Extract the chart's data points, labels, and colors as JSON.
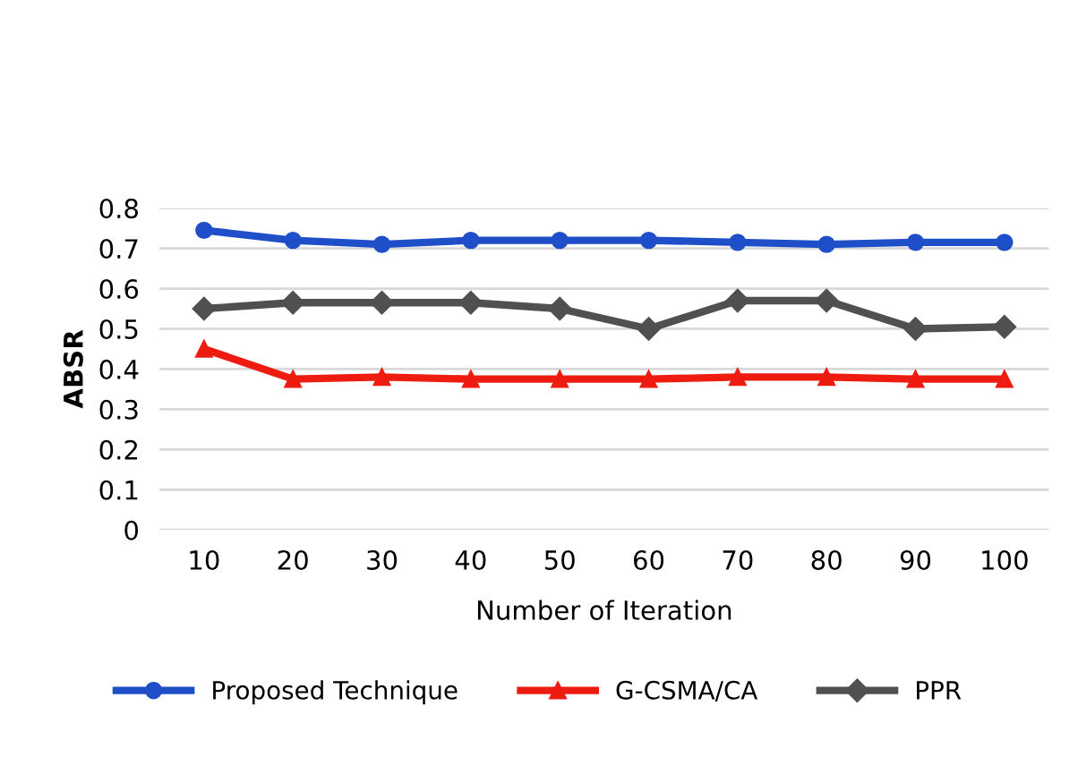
{
  "chart_data": {
    "type": "line",
    "xlabel": "Number of Iteration",
    "ylabel": "ABSR",
    "categories": [
      "10",
      "20",
      "30",
      "40",
      "50",
      "60",
      "70",
      "80",
      "90",
      "100"
    ],
    "series": [
      {
        "name": "Proposed Technique",
        "color": "#1f4fc8",
        "marker": "circle",
        "values": [
          0.745,
          0.72,
          0.71,
          0.72,
          0.72,
          0.72,
          0.715,
          0.71,
          0.715,
          0.715
        ]
      },
      {
        "name": "G-CSMA/CA",
        "color": "#ee1c10",
        "marker": "triangle",
        "values": [
          0.45,
          0.375,
          0.38,
          0.375,
          0.375,
          0.375,
          0.38,
          0.38,
          0.375,
          0.375
        ]
      },
      {
        "name": "PPR",
        "color": "#505050",
        "marker": "diamond",
        "values": [
          0.55,
          0.565,
          0.565,
          0.565,
          0.55,
          0.5,
          0.57,
          0.57,
          0.5,
          0.505
        ]
      }
    ],
    "ylim": [
      0,
      0.8
    ],
    "yticks": [
      "0",
      0.1,
      0.2,
      0.3,
      0.4,
      0.5,
      0.6,
      0.7,
      0.8
    ],
    "grid": "y",
    "legend": "bottom",
    "line_style": "solid"
  }
}
